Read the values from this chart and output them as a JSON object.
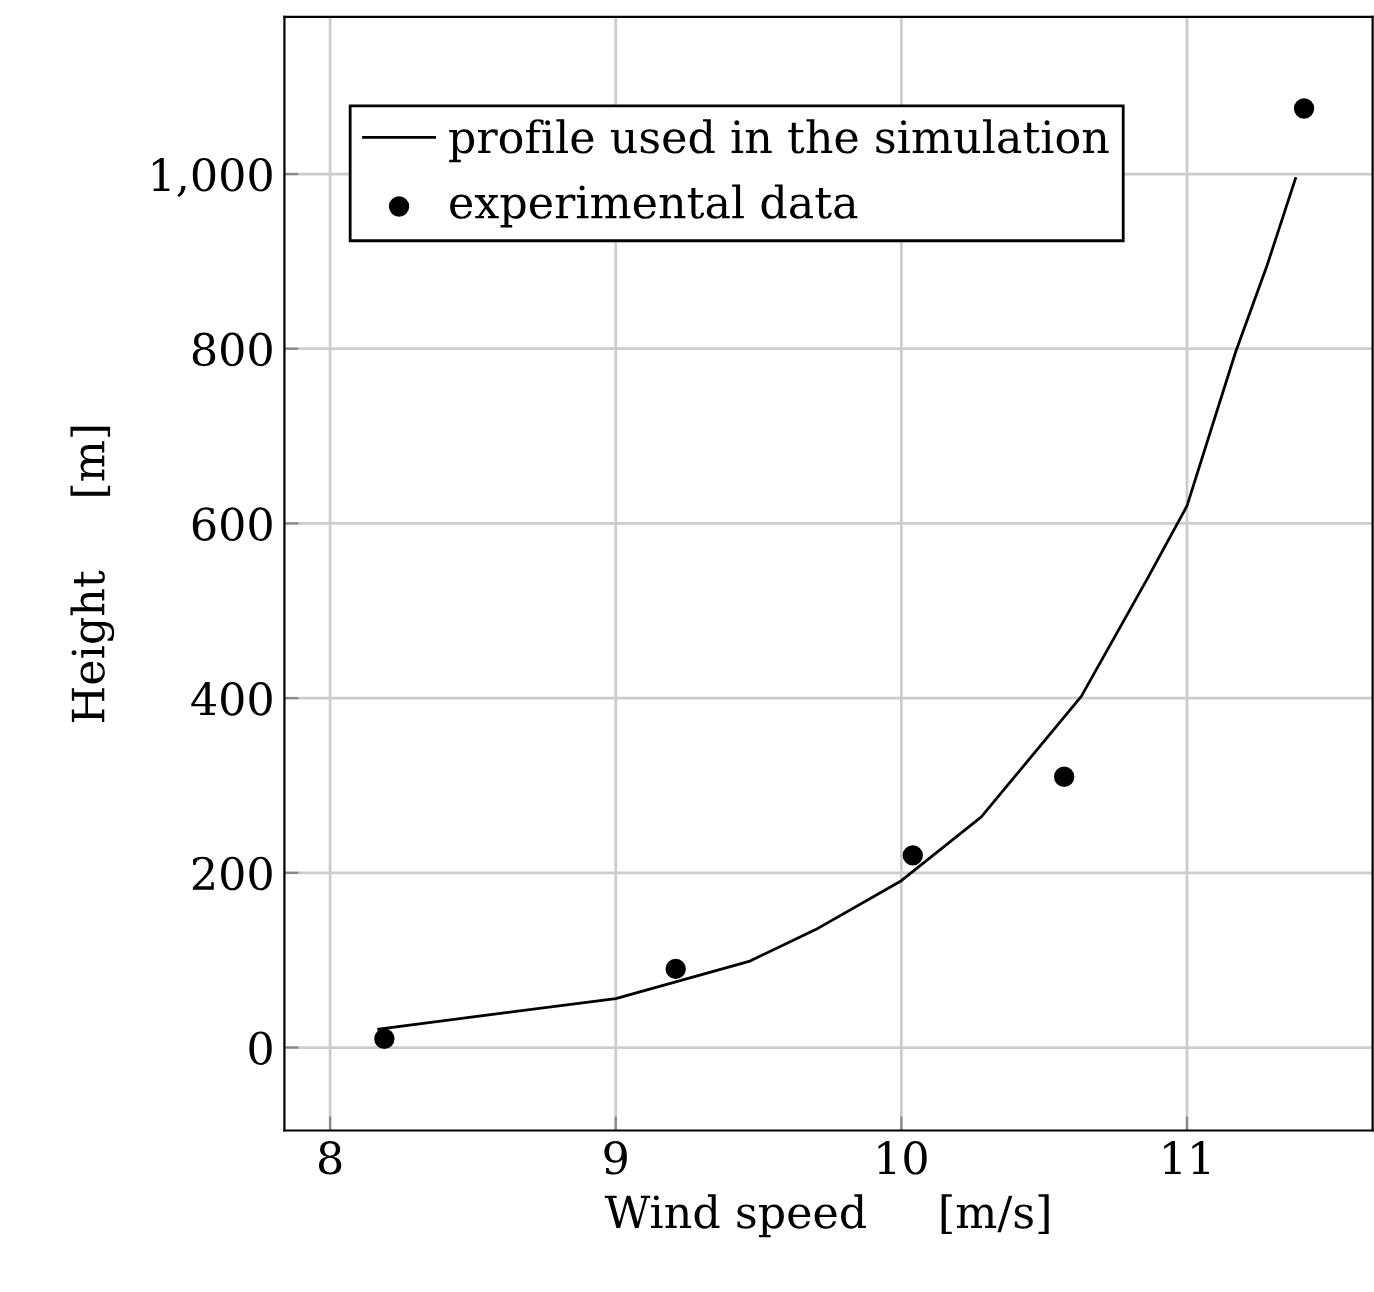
{
  "chart_data": {
    "type": "line",
    "xlabel": "Wind speed     [m/s]",
    "ylabel": "Height     [m]",
    "xlim": [
      7.84,
      11.65
    ],
    "ylim": [
      -95,
      1180
    ],
    "xticks": [
      8,
      9,
      10,
      11
    ],
    "yticks": [
      0,
      200,
      400,
      600,
      800,
      {
        "value": 1000,
        "label": "1,000"
      }
    ],
    "grid": true,
    "legend": "top left",
    "series": [
      {
        "name": "profile used in the simulation",
        "color": "#000000",
        "marker": "none",
        "line_style": "solid",
        "x": [
          8.17,
          8.5,
          9.0,
          9.47,
          9.7,
          10.0,
          10.28,
          10.63,
          10.86,
          11.0,
          11.17,
          11.28,
          11.38
        ],
        "values": [
          21,
          35,
          56,
          99,
          135,
          191,
          264,
          402,
          536,
          620,
          796,
          895,
          995
        ]
      },
      {
        "name": "experimental data",
        "type": "scatter",
        "color": "#000000",
        "marker": "circle",
        "x": [
          8.19,
          9.21,
          10.04,
          10.57,
          11.41
        ],
        "values": [
          10,
          90,
          220,
          310,
          1075
        ]
      }
    ]
  }
}
